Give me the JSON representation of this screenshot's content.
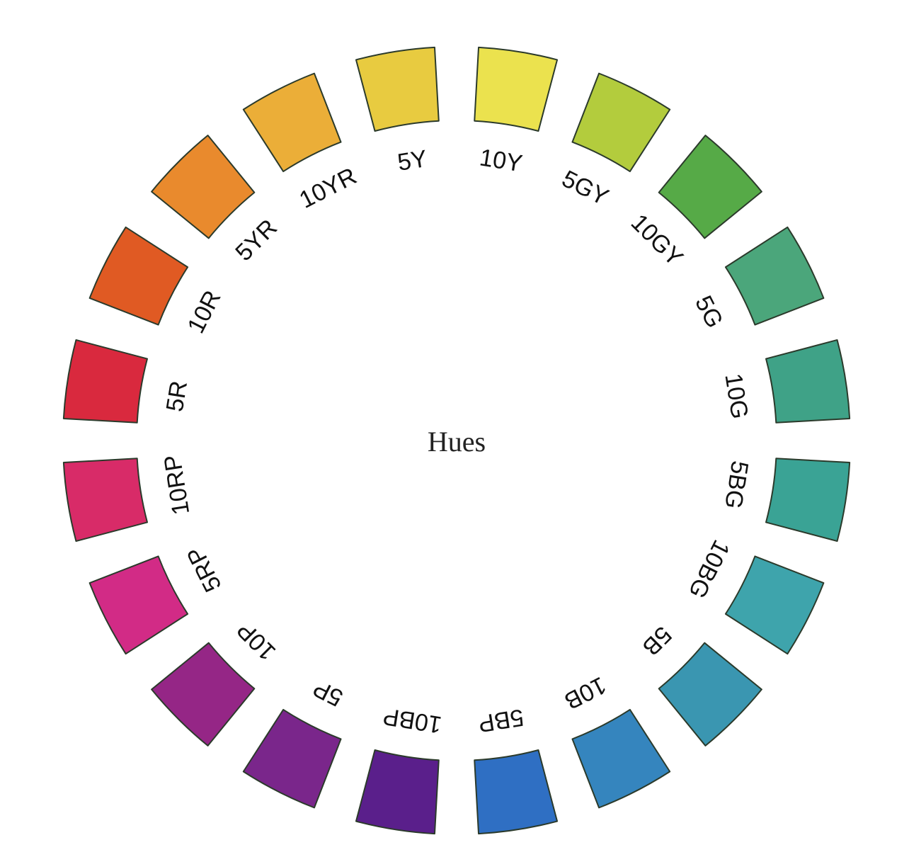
{
  "title": "Hues",
  "hues": [
    {
      "label": "5Y",
      "color": "#E8CB40"
    },
    {
      "label": "10Y",
      "color": "#EBE24E"
    },
    {
      "label": "5GY",
      "color": "#B3CC3D"
    },
    {
      "label": "10GY",
      "color": "#56AA47"
    },
    {
      "label": "5G",
      "color": "#4BA67B"
    },
    {
      "label": "10G",
      "color": "#3FA287"
    },
    {
      "label": "5BG",
      "color": "#3AA395"
    },
    {
      "label": "10BG",
      "color": "#3EA4AC"
    },
    {
      "label": "5B",
      "color": "#3A96B1"
    },
    {
      "label": "10B",
      "color": "#3585BE"
    },
    {
      "label": "5BP",
      "color": "#2F6FC3"
    },
    {
      "label": "10BP",
      "color": "#5A1F8B"
    },
    {
      "label": "5P",
      "color": "#7A268B"
    },
    {
      "label": "10P",
      "color": "#952686"
    },
    {
      "label": "5RP",
      "color": "#D22B86"
    },
    {
      "label": "10RP",
      "color": "#D82B68"
    },
    {
      "label": "5R",
      "color": "#D9293E"
    },
    {
      "label": "10R",
      "color": "#E05A23"
    },
    {
      "label": "5YR",
      "color": "#E98A2D"
    },
    {
      "label": "10YR",
      "color": "#EBAE38"
    }
  ]
}
